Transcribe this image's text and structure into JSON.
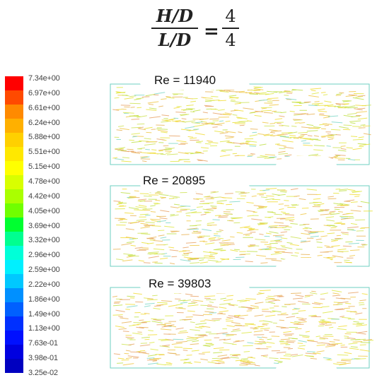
{
  "equation": {
    "numerator": "H/D",
    "denominator": "L/D",
    "equals": "=",
    "value_numerator": "4",
    "value_denominator": "4"
  },
  "legend": {
    "ticks": [
      "7.34e+00",
      "6.97e+00",
      "6.61e+00",
      "6.24e+00",
      "5.88e+00",
      "5.51e+00",
      "5.15e+00",
      "4.78e+00",
      "4.42e+00",
      "4.05e+00",
      "3.69e+00",
      "3.32e+00",
      "2.96e+00",
      "2.59e+00",
      "2.22e+00",
      "1.86e+00",
      "1.49e+00",
      "1.13e+00",
      "7.63e-01",
      "3.98e-01",
      "3.25e-02"
    ],
    "colors": [
      "#ff0000",
      "#ff4a00",
      "#ff8a00",
      "#ffb000",
      "#ffd000",
      "#ffe800",
      "#ffff00",
      "#d8ff00",
      "#aaff00",
      "#70ff00",
      "#00ff30",
      "#00ff90",
      "#00ffd8",
      "#00f0ff",
      "#00c8ff",
      "#0090ff",
      "#0060ff",
      "#0030ff",
      "#0010ff",
      "#0000e0",
      "#0000c0"
    ]
  },
  "panels": [
    {
      "label": "Re = 11940"
    },
    {
      "label": "Re = 20895"
    },
    {
      "label": "Re = 39803"
    }
  ]
}
